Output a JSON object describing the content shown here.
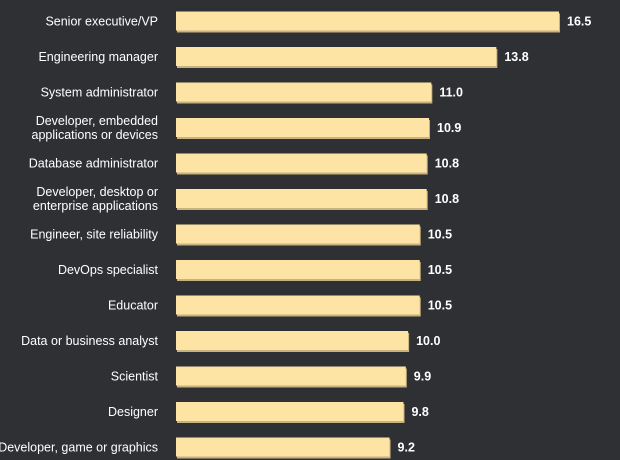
{
  "chart_data": {
    "type": "bar",
    "orientation": "horizontal",
    "title": "",
    "xlabel": "",
    "ylabel": "",
    "categories": [
      [
        "Senior executive/VP"
      ],
      [
        "Engineering manager"
      ],
      [
        "System administrator"
      ],
      [
        "Developer, embedded",
        "applications or devices"
      ],
      [
        "Database administrator"
      ],
      [
        "Developer, desktop or",
        "enterprise applications"
      ],
      [
        "Engineer, site reliability"
      ],
      [
        "DevOps specialist"
      ],
      [
        "Educator"
      ],
      [
        "Data or business analyst"
      ],
      [
        "Scientist"
      ],
      [
        "Designer"
      ],
      [
        "Developer, game or graphics"
      ]
    ],
    "values": [
      16.5,
      13.8,
      11.0,
      10.9,
      10.8,
      10.8,
      10.5,
      10.5,
      10.5,
      10.0,
      9.9,
      9.8,
      9.2
    ],
    "value_labels": [
      "16.5",
      "13.8",
      "11.0",
      "10.9",
      "10.8",
      "10.8",
      "10.5",
      "10.5",
      "10.5",
      "10.0",
      "9.9",
      "9.8",
      "9.2"
    ],
    "xlim": [
      0,
      16.5
    ],
    "grid": false,
    "colors": {
      "bar": "#fde3a4",
      "background": "#2f3033",
      "text": "#ffffff"
    }
  }
}
